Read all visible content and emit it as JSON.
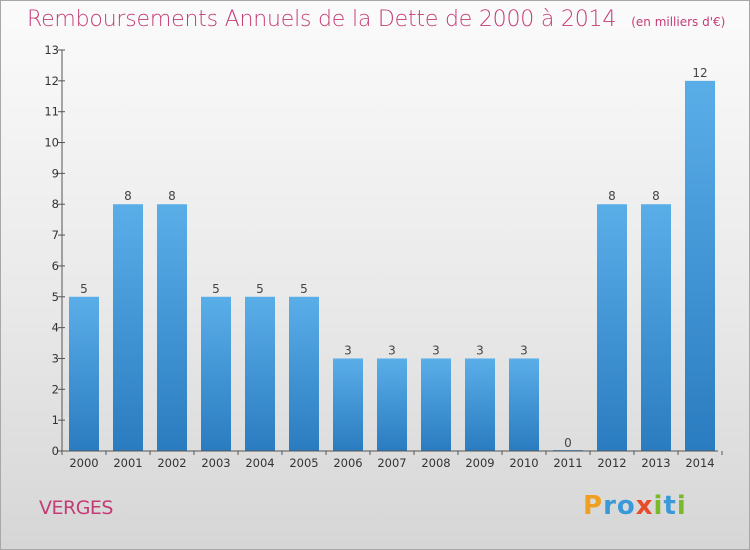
{
  "header": {
    "title": "Remboursements Annuels de la Dette de 2000 à 2014",
    "unit": "(en milliers d'€)"
  },
  "commune": "VERGES",
  "logo": {
    "text": "Proxiti",
    "letters": [
      {
        "ch": "P",
        "color": "#f0a020"
      },
      {
        "ch": "r",
        "color": "#3a9ad9"
      },
      {
        "ch": "o",
        "color": "#3a9ad9"
      },
      {
        "ch": "x",
        "color": "#e84a2a"
      },
      {
        "ch": "i",
        "color": "#7ab929"
      },
      {
        "ch": "t",
        "color": "#3a9ad9"
      },
      {
        "ch": "i",
        "color": "#7ab929"
      }
    ]
  },
  "chart_data": {
    "type": "bar",
    "title": "Remboursements Annuels de la Dette de 2000 à 2014",
    "subtitle": "(en milliers d'€)",
    "categories": [
      "2000",
      "2001",
      "2002",
      "2003",
      "2004",
      "2005",
      "2006",
      "2007",
      "2008",
      "2009",
      "2010",
      "2011",
      "2012",
      "2013",
      "2014"
    ],
    "values": [
      5,
      8,
      8,
      5,
      5,
      5,
      3,
      3,
      3,
      3,
      3,
      0,
      8,
      8,
      12
    ],
    "ylim": [
      0,
      13
    ],
    "yticks": [
      0,
      1,
      2,
      3,
      4,
      5,
      6,
      7,
      8,
      9,
      10,
      11,
      12,
      13
    ],
    "grid": false,
    "colors": {
      "bar_top": "#5aaee8",
      "bar_bottom": "#2a7cc0",
      "axis": "#555555",
      "label": "#444444"
    }
  }
}
